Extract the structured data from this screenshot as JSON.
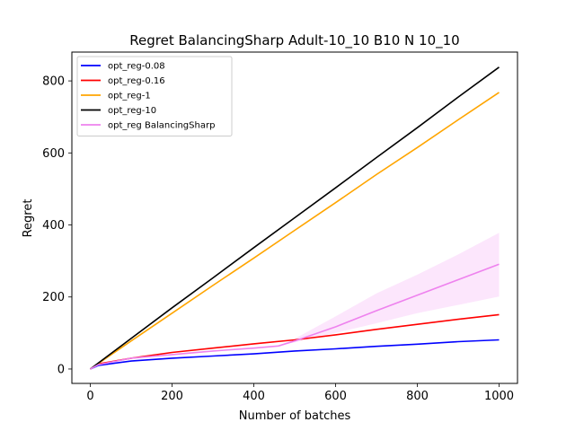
{
  "chart_data": {
    "type": "line",
    "title": "Regret BalancingSharp Adult-10_10 B10 N 10_10",
    "xlabel": "Number of batches",
    "ylabel": "Regret",
    "xlim": [
      -45,
      1045
    ],
    "ylim": [
      -40,
      880
    ],
    "xticks": [
      0,
      200,
      400,
      600,
      800,
      1000
    ],
    "yticks": [
      0,
      200,
      400,
      600,
      800
    ],
    "grid": false,
    "legend_position": "top-left",
    "series": [
      {
        "name": "opt_reg-0.08",
        "color": "#0000ff",
        "x": [
          0,
          20,
          100,
          200,
          300,
          400,
          500,
          600,
          700,
          800,
          900,
          1000
        ],
        "y": [
          0,
          10,
          22,
          30,
          36,
          42,
          50,
          56,
          63,
          69,
          76,
          81
        ]
      },
      {
        "name": "opt_reg-0.16",
        "color": "#ff0000",
        "x": [
          0,
          20,
          100,
          200,
          300,
          400,
          500,
          600,
          700,
          800,
          900,
          1000
        ],
        "y": [
          0,
          14,
          30,
          46,
          58,
          70,
          81,
          95,
          110,
          124,
          138,
          151
        ]
      },
      {
        "name": "opt_reg-1",
        "color": "#ffa500",
        "x": [
          0,
          100,
          200,
          300,
          400,
          500,
          600,
          700,
          800,
          900,
          1000
        ],
        "y": [
          0,
          78,
          155,
          232,
          308,
          385,
          462,
          540,
          615,
          692,
          768
        ]
      },
      {
        "name": "opt_reg-10",
        "color": "#000000",
        "x": [
          0,
          100,
          200,
          300,
          400,
          500,
          600,
          700,
          800,
          900,
          1000
        ],
        "y": [
          0,
          85,
          170,
          253,
          337,
          420,
          503,
          587,
          670,
          755,
          838
        ]
      },
      {
        "name": "opt_reg BalancingSharp",
        "color": "#ee82ee",
        "x": [
          0,
          20,
          100,
          200,
          300,
          400,
          460,
          500,
          600,
          700,
          800,
          900,
          1000
        ],
        "y": [
          0,
          12,
          30,
          40,
          50,
          58,
          64,
          78,
          117,
          162,
          205,
          248,
          291
        ],
        "band_lower": [
          0,
          12,
          30,
          40,
          50,
          58,
          64,
          74,
          100,
          127,
          155,
          178,
          201
        ],
        "band_upper": [
          0,
          12,
          30,
          40,
          50,
          58,
          64,
          84,
          146,
          210,
          262,
          318,
          378
        ]
      }
    ]
  }
}
